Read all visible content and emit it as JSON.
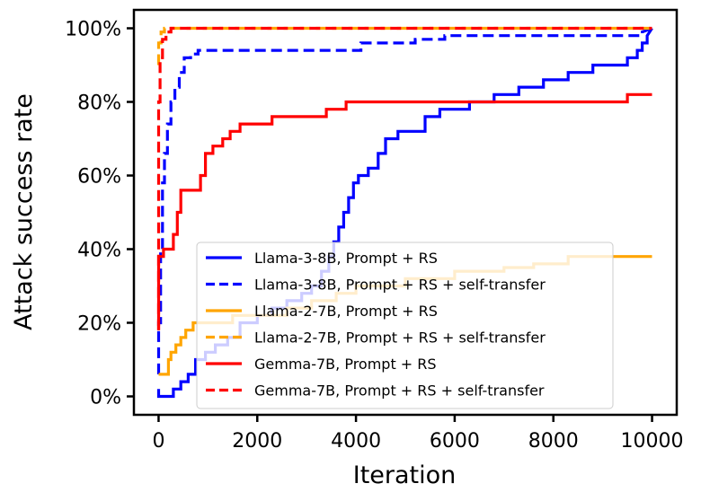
{
  "chart_data": {
    "type": "line",
    "xlabel": "Iteration",
    "ylabel": "Attack success rate",
    "xlim": [
      -500,
      10500
    ],
    "ylim": [
      -5,
      105
    ],
    "xticks": [
      0,
      2000,
      4000,
      6000,
      8000,
      10000
    ],
    "xtick_labels": [
      "0",
      "2000",
      "4000",
      "6000",
      "8000",
      "10000"
    ],
    "yticks": [
      0,
      20,
      40,
      60,
      80,
      100
    ],
    "ytick_labels": [
      "0%",
      "20%",
      "40%",
      "60%",
      "80%",
      "100%"
    ],
    "grid": false,
    "legend_position": "lower-right",
    "series": [
      {
        "name": "Llama-3-8B, Prompt + RS",
        "color": "#0000ff",
        "dash": "solid",
        "points": [
          [
            0,
            2
          ],
          [
            0,
            0
          ],
          [
            300,
            0
          ],
          [
            300,
            2
          ],
          [
            450,
            2
          ],
          [
            450,
            4
          ],
          [
            600,
            4
          ],
          [
            600,
            6
          ],
          [
            750,
            6
          ],
          [
            750,
            10
          ],
          [
            950,
            10
          ],
          [
            950,
            12
          ],
          [
            1150,
            12
          ],
          [
            1150,
            14
          ],
          [
            1400,
            14
          ],
          [
            1400,
            16
          ],
          [
            1650,
            16
          ],
          [
            1650,
            20
          ],
          [
            2000,
            20
          ],
          [
            2000,
            22
          ],
          [
            2300,
            22
          ],
          [
            2300,
            24
          ],
          [
            2600,
            24
          ],
          [
            2600,
            26
          ],
          [
            2900,
            26
          ],
          [
            2900,
            28
          ],
          [
            3100,
            28
          ],
          [
            3100,
            30
          ],
          [
            3300,
            30
          ],
          [
            3300,
            34
          ],
          [
            3450,
            34
          ],
          [
            3450,
            38
          ],
          [
            3550,
            38
          ],
          [
            3550,
            42
          ],
          [
            3650,
            42
          ],
          [
            3650,
            46
          ],
          [
            3750,
            46
          ],
          [
            3750,
            50
          ],
          [
            3850,
            50
          ],
          [
            3850,
            54
          ],
          [
            3950,
            54
          ],
          [
            3950,
            58
          ],
          [
            4050,
            58
          ],
          [
            4050,
            60
          ],
          [
            4250,
            60
          ],
          [
            4250,
            62
          ],
          [
            4450,
            62
          ],
          [
            4450,
            66
          ],
          [
            4600,
            66
          ],
          [
            4600,
            70
          ],
          [
            4850,
            70
          ],
          [
            4850,
            72
          ],
          [
            5400,
            72
          ],
          [
            5400,
            76
          ],
          [
            5700,
            76
          ],
          [
            5700,
            78
          ],
          [
            6300,
            78
          ],
          [
            6300,
            80
          ],
          [
            6800,
            80
          ],
          [
            6800,
            82
          ],
          [
            7300,
            82
          ],
          [
            7300,
            84
          ],
          [
            7800,
            84
          ],
          [
            7800,
            86
          ],
          [
            8300,
            86
          ],
          [
            8300,
            88
          ],
          [
            8800,
            88
          ],
          [
            8800,
            90
          ],
          [
            9500,
            90
          ],
          [
            9500,
            92
          ],
          [
            9700,
            92
          ],
          [
            9700,
            94
          ],
          [
            9800,
            94
          ],
          [
            9800,
            96
          ],
          [
            9900,
            96
          ],
          [
            9900,
            98
          ],
          [
            10000,
            100
          ]
        ]
      },
      {
        "name": "Llama-3-8B, Prompt + RS + self-transfer",
        "color": "#0000ff",
        "dash": "dashed",
        "points": [
          [
            0,
            6
          ],
          [
            0,
            20
          ],
          [
            40,
            20
          ],
          [
            40,
            40
          ],
          [
            80,
            40
          ],
          [
            80,
            58
          ],
          [
            120,
            58
          ],
          [
            120,
            66
          ],
          [
            180,
            66
          ],
          [
            180,
            74
          ],
          [
            250,
            74
          ],
          [
            250,
            80
          ],
          [
            330,
            80
          ],
          [
            330,
            84
          ],
          [
            420,
            84
          ],
          [
            420,
            88
          ],
          [
            520,
            88
          ],
          [
            520,
            92
          ],
          [
            650,
            92
          ],
          [
            650,
            93
          ],
          [
            800,
            93
          ],
          [
            800,
            94
          ],
          [
            4100,
            94
          ],
          [
            4100,
            96
          ],
          [
            5200,
            96
          ],
          [
            5200,
            97
          ],
          [
            5800,
            97
          ],
          [
            5800,
            98
          ],
          [
            9800,
            98
          ],
          [
            9800,
            99
          ],
          [
            10000,
            100
          ]
        ]
      },
      {
        "name": "Llama-2-7B, Prompt + RS",
        "color": "#ffa500",
        "dash": "solid",
        "points": [
          [
            0,
            6
          ],
          [
            200,
            6
          ],
          [
            200,
            10
          ],
          [
            250,
            10
          ],
          [
            250,
            12
          ],
          [
            350,
            12
          ],
          [
            350,
            14
          ],
          [
            450,
            14
          ],
          [
            450,
            16
          ],
          [
            550,
            16
          ],
          [
            550,
            18
          ],
          [
            700,
            18
          ],
          [
            700,
            20
          ],
          [
            1500,
            20
          ],
          [
            1500,
            22
          ],
          [
            2600,
            22
          ],
          [
            2600,
            24
          ],
          [
            3100,
            24
          ],
          [
            3100,
            26
          ],
          [
            3600,
            26
          ],
          [
            3600,
            28
          ],
          [
            4000,
            28
          ],
          [
            4000,
            30
          ],
          [
            5000,
            30
          ],
          [
            5000,
            32
          ],
          [
            6000,
            32
          ],
          [
            6000,
            34
          ],
          [
            7000,
            34
          ],
          [
            7000,
            35
          ],
          [
            7600,
            35
          ],
          [
            7600,
            36
          ],
          [
            8300,
            36
          ],
          [
            8300,
            38
          ],
          [
            10000,
            38
          ]
        ]
      },
      {
        "name": "Llama-2-7B, Prompt + RS + self-transfer",
        "color": "#ffa500",
        "dash": "dashed",
        "points": [
          [
            0,
            90
          ],
          [
            0,
            96
          ],
          [
            50,
            96
          ],
          [
            50,
            99
          ],
          [
            120,
            99
          ],
          [
            120,
            100
          ],
          [
            10000,
            100
          ]
        ]
      },
      {
        "name": "Gemma-7B, Prompt + RS",
        "color": "#ff0000",
        "dash": "solid",
        "points": [
          [
            0,
            18
          ],
          [
            0,
            38
          ],
          [
            100,
            38
          ],
          [
            100,
            40
          ],
          [
            300,
            40
          ],
          [
            300,
            44
          ],
          [
            380,
            44
          ],
          [
            380,
            50
          ],
          [
            450,
            50
          ],
          [
            450,
            56
          ],
          [
            850,
            56
          ],
          [
            850,
            60
          ],
          [
            950,
            60
          ],
          [
            950,
            66
          ],
          [
            1100,
            66
          ],
          [
            1100,
            68
          ],
          [
            1300,
            68
          ],
          [
            1300,
            70
          ],
          [
            1450,
            70
          ],
          [
            1450,
            72
          ],
          [
            1650,
            72
          ],
          [
            1650,
            74
          ],
          [
            2300,
            74
          ],
          [
            2300,
            76
          ],
          [
            3400,
            76
          ],
          [
            3400,
            78
          ],
          [
            3800,
            78
          ],
          [
            3800,
            80
          ],
          [
            9500,
            80
          ],
          [
            9500,
            82
          ],
          [
            10000,
            82
          ]
        ]
      },
      {
        "name": "Gemma-7B, Prompt + RS + self-transfer",
        "color": "#ff0000",
        "dash": "dashed",
        "points": [
          [
            0,
            18
          ],
          [
            0,
            80
          ],
          [
            30,
            80
          ],
          [
            30,
            92
          ],
          [
            80,
            92
          ],
          [
            80,
            97
          ],
          [
            150,
            97
          ],
          [
            150,
            99
          ],
          [
            250,
            99
          ],
          [
            250,
            100
          ],
          [
            10000,
            100
          ]
        ]
      }
    ]
  }
}
